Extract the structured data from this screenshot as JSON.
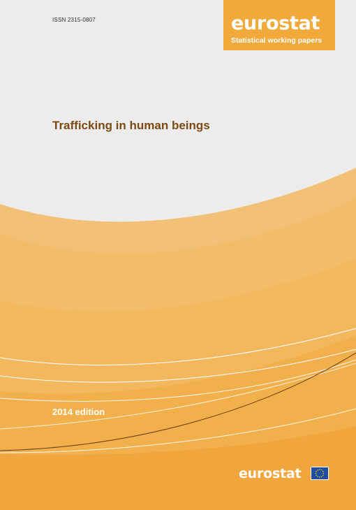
{
  "cover": {
    "issn": "ISSN 2315-0807",
    "brand": "eurostat",
    "series": "Statistical working papers",
    "title": "Trafficking in human beings",
    "edition": "2014 edition",
    "footer_brand": "eurostat",
    "flag_icon": "eu-flag-icon"
  },
  "colors": {
    "accent_orange": "#f2a93b",
    "title_brown": "#7a4a12",
    "background_grey": "#ececec"
  }
}
